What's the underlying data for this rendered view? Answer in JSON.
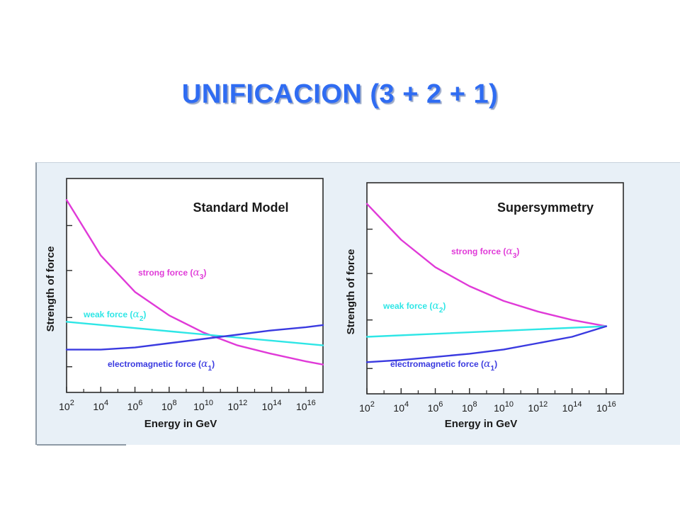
{
  "title": "UNIFICACION (3 + 2 + 1)",
  "colors": {
    "title": "#2f6cf2",
    "strong": "#e03ad8",
    "weak": "#2ee6e6",
    "electromagnetic": "#3a3ae0",
    "panel_bg": "#e8f0f7"
  },
  "chart_data": [
    {
      "type": "line",
      "title": "Standard Model",
      "xlabel": "Energy in GeV",
      "ylabel": "Strength of force",
      "x_ticks": [
        {
          "base": "10",
          "exp": "2"
        },
        {
          "base": "10",
          "exp": "4"
        },
        {
          "base": "10",
          "exp": "6"
        },
        {
          "base": "10",
          "exp": "8"
        },
        {
          "base": "10",
          "exp": "10"
        },
        {
          "base": "10",
          "exp": "12"
        },
        {
          "base": "10",
          "exp": "14"
        },
        {
          "base": "10",
          "exp": "16"
        }
      ],
      "xlim": [
        2,
        17
      ],
      "ylim": [
        0,
        1
      ],
      "x_scale": "log10",
      "grid": false,
      "series": [
        {
          "key": "strong",
          "label": "strong force (",
          "symbol": "α",
          "sub": "3",
          "close": ")",
          "x": [
            2,
            4,
            6,
            8,
            10,
            12,
            14,
            16,
            17
          ],
          "y": [
            0.9,
            0.64,
            0.47,
            0.36,
            0.28,
            0.22,
            0.18,
            0.145,
            0.13
          ]
        },
        {
          "key": "weak",
          "label": "weak force (",
          "symbol": "α",
          "sub": "2",
          "close": ")",
          "x": [
            2,
            17
          ],
          "y": [
            0.33,
            0.22
          ]
        },
        {
          "key": "electromagnetic",
          "label": "electromagnetic force (",
          "symbol": "α",
          "sub": "1",
          "close": ")",
          "x": [
            2,
            4,
            6,
            8,
            10,
            12,
            14,
            16,
            17
          ],
          "y": [
            0.2,
            0.2,
            0.21,
            0.23,
            0.25,
            0.27,
            0.29,
            0.305,
            0.315
          ]
        }
      ]
    },
    {
      "type": "line",
      "title": "Supersymmetry",
      "xlabel": "Energy in GeV",
      "ylabel": "Strength of force",
      "x_ticks": [
        {
          "base": "10",
          "exp": "2"
        },
        {
          "base": "10",
          "exp": "4"
        },
        {
          "base": "10",
          "exp": "6"
        },
        {
          "base": "10",
          "exp": "8"
        },
        {
          "base": "10",
          "exp": "10"
        },
        {
          "base": "10",
          "exp": "12"
        },
        {
          "base": "10",
          "exp": "14"
        },
        {
          "base": "10",
          "exp": "16"
        }
      ],
      "xlim": [
        2,
        17
      ],
      "ylim": [
        0,
        1
      ],
      "x_scale": "log10",
      "grid": false,
      "series": [
        {
          "key": "strong",
          "label": "strong force (",
          "symbol": "α",
          "sub": "3",
          "close": ")",
          "x": [
            2,
            4,
            6,
            8,
            10,
            12,
            14,
            16
          ],
          "y": [
            0.9,
            0.73,
            0.6,
            0.51,
            0.44,
            0.39,
            0.35,
            0.32
          ]
        },
        {
          "key": "weak",
          "label": "weak force (",
          "symbol": "α",
          "sub": "2",
          "close": ")",
          "x": [
            2,
            16
          ],
          "y": [
            0.27,
            0.32
          ]
        },
        {
          "key": "electromagnetic",
          "label": "electromagnetic force (",
          "symbol": "α",
          "sub": "1",
          "close": ")",
          "x": [
            2,
            4,
            6,
            8,
            10,
            12,
            14,
            16
          ],
          "y": [
            0.15,
            0.16,
            0.175,
            0.19,
            0.21,
            0.24,
            0.27,
            0.32
          ]
        }
      ]
    }
  ]
}
